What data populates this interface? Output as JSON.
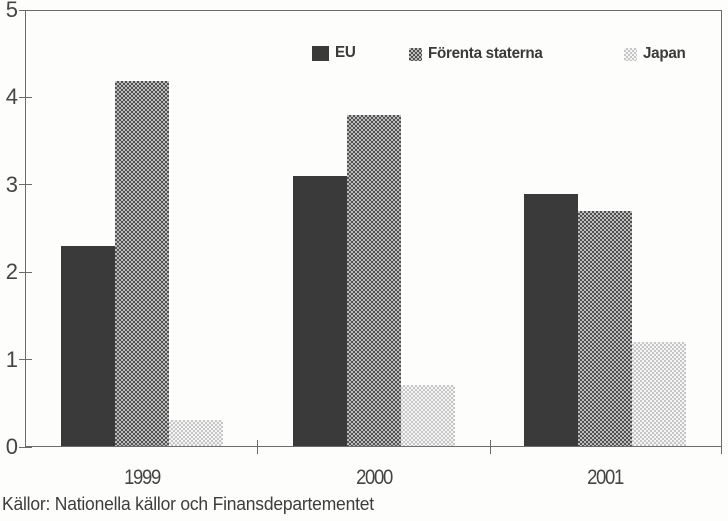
{
  "chart_data": {
    "type": "bar",
    "title": "",
    "categories": [
      "1999",
      "2000",
      "2001"
    ],
    "series": [
      {
        "name": "EU",
        "pattern": "solid-dark",
        "values": [
          2.3,
          3.1,
          2.9
        ]
      },
      {
        "name": "Förenta staterna",
        "pattern": "checker-dark",
        "values": [
          4.2,
          3.8,
          2.7
        ]
      },
      {
        "name": "Japan",
        "pattern": "checker-light",
        "values": [
          0.3,
          0.7,
          1.2
        ]
      }
    ],
    "xlabel": "",
    "ylabel": "",
    "ylim": [
      0,
      5
    ],
    "yticks": [
      0,
      1,
      2,
      3,
      4,
      5
    ],
    "legend_position": "top-inside",
    "grid": false
  },
  "caption": "Källor: Nationella källor och Finansdepartementet",
  "colors": {
    "bar_dark": "#3a3a3a",
    "checker_dark_a": "#525252",
    "checker_dark_b": "#bcbcbc",
    "checker_light_a": "#c6c6c6",
    "checker_light_b": "#f5f5f5",
    "axis": "#6b6b6b",
    "text": "#383838"
  }
}
